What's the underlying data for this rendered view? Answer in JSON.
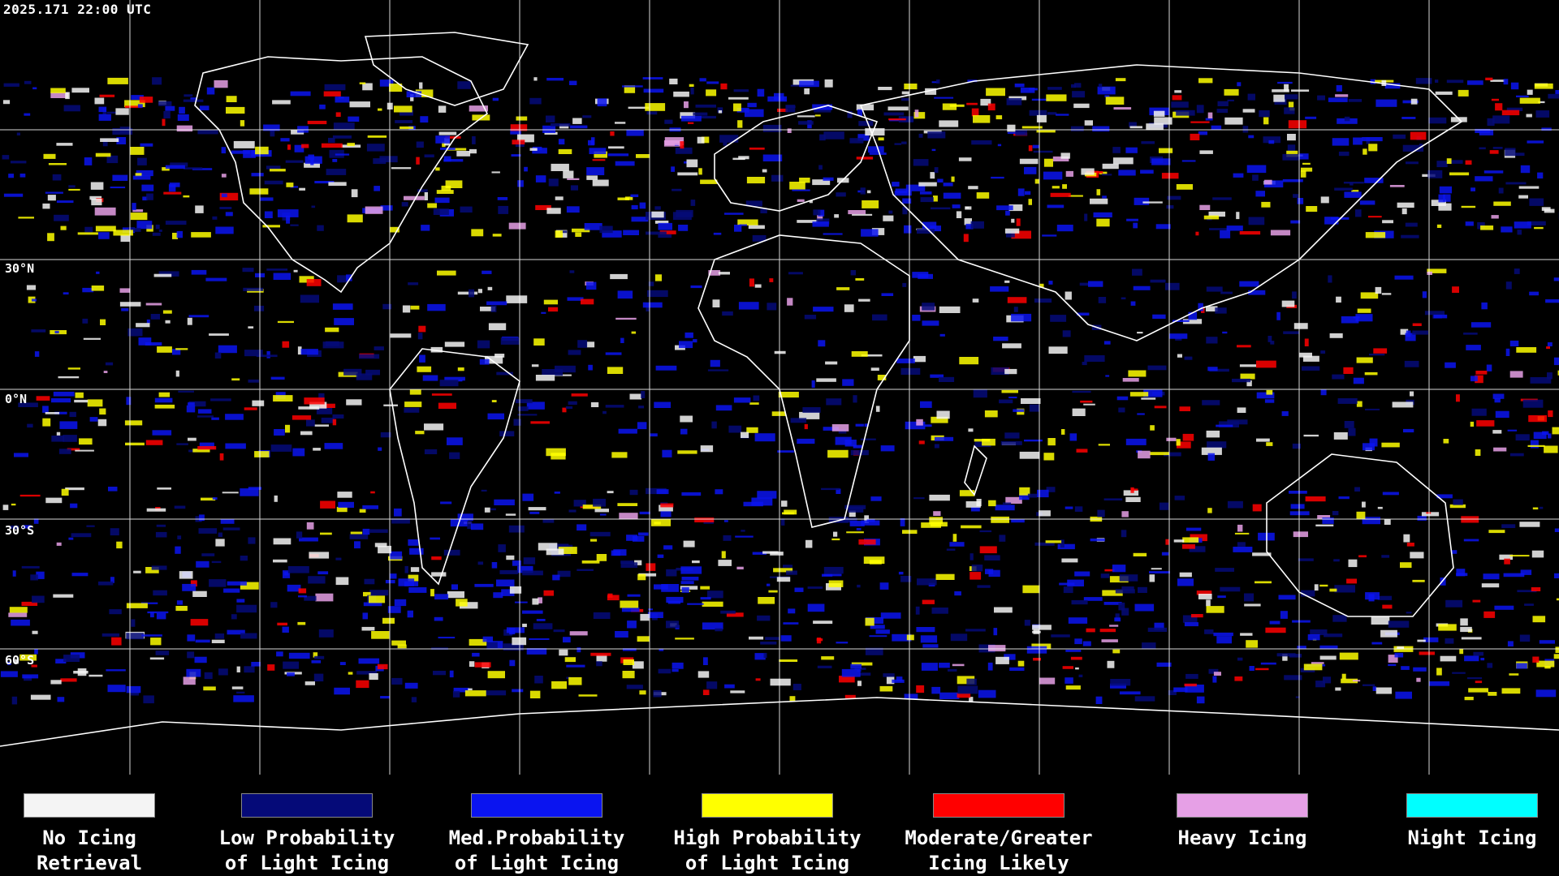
{
  "timestamp": "2025.171 22:00 UTC",
  "lat_labels": [
    "30°N",
    "0°N",
    "30°S",
    "60°S"
  ],
  "legend": [
    {
      "label": "No Icing\nRetrieval",
      "color": "#f4f4f4"
    },
    {
      "label": "Low Probability\nof Light Icing",
      "color": "#050a78"
    },
    {
      "label": "Med.Probability\nof Light Icing",
      "color": "#0a14f0"
    },
    {
      "label": "High Probability\nof Light Icing",
      "color": "#ffff00"
    },
    {
      "label": "Moderate/Greater\nIcing Likely",
      "color": "#ff0000"
    },
    {
      "label": "Heavy Icing",
      "color": "#e6a0e6"
    },
    {
      "label": "Night Icing",
      "color": "#00ffff"
    }
  ],
  "colors": {
    "background": "#000000",
    "grid": "#ffffff",
    "coastline": "#ffffff"
  }
}
